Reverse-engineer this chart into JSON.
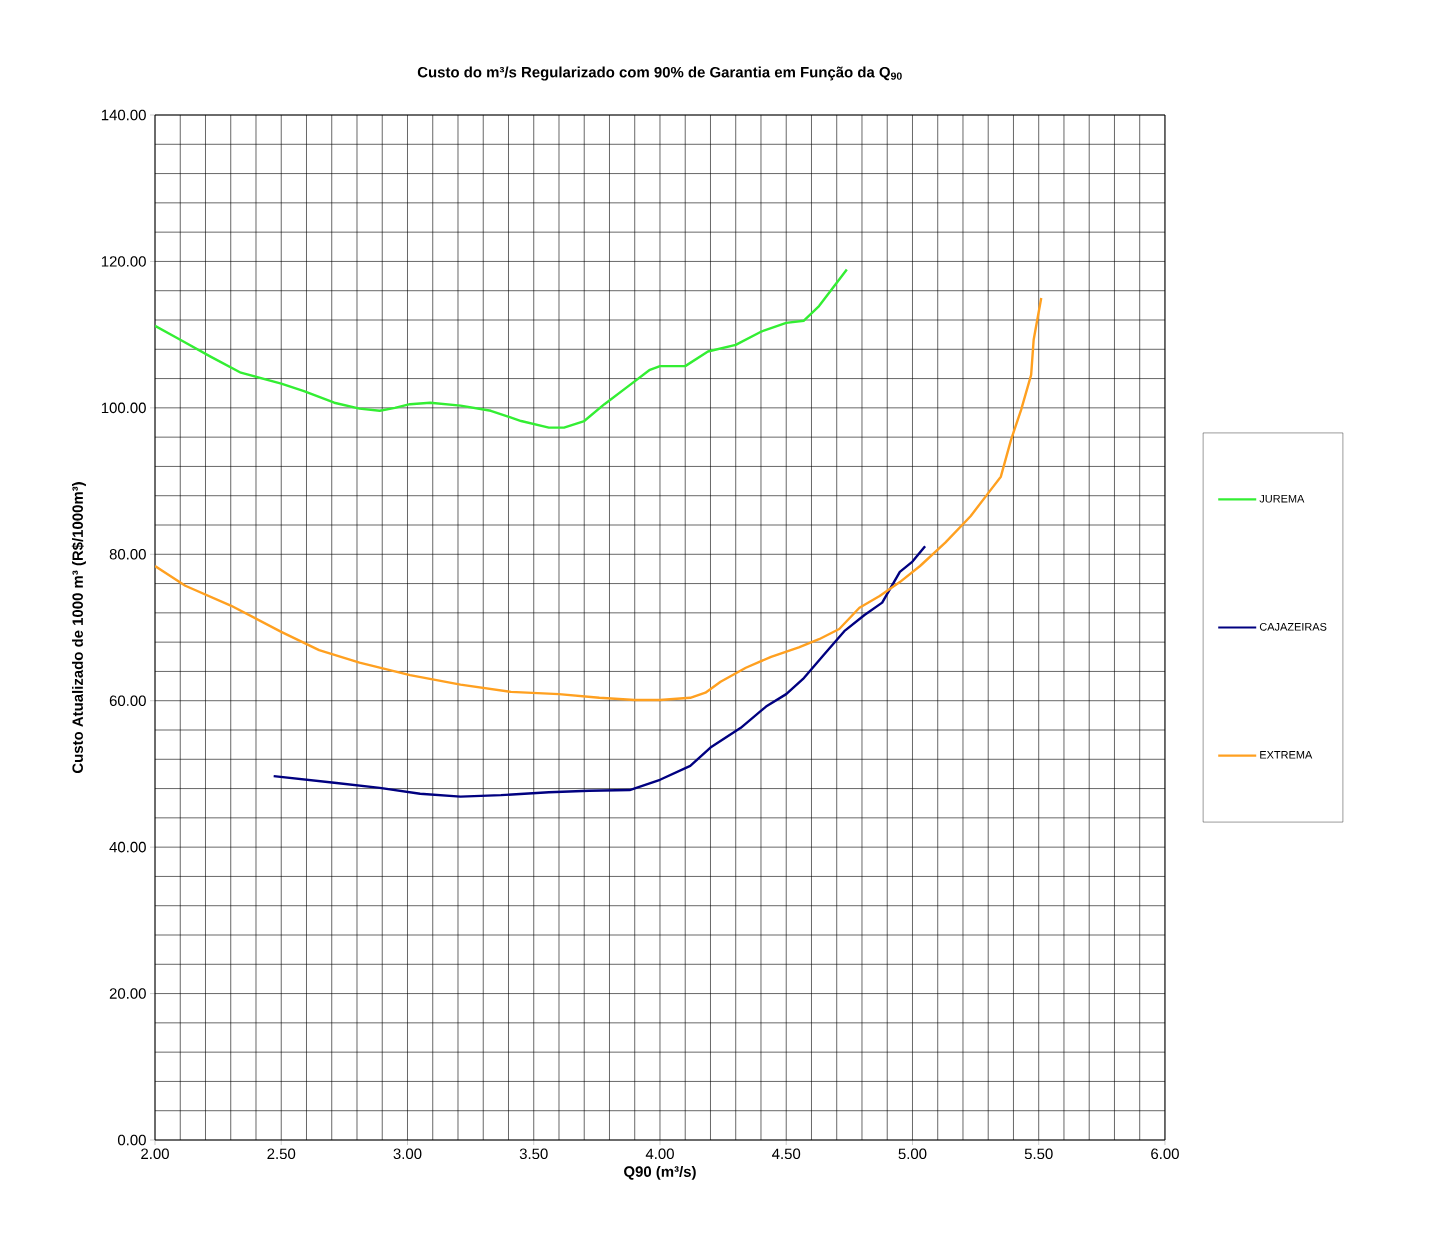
{
  "chart_data": {
    "type": "line",
    "title": "Custo do m³/s Regularizado com 90% de Garantia em Função da Q$_{90}$",
    "xlabel": "Q90 (m³/s)",
    "ylabel": "Custo Atualizado de 1000 m³ (R$/1000m³)",
    "xlim": [
      2,
      6
    ],
    "ylim": [
      0,
      140
    ],
    "xticks": [
      {
        "value": 2,
        "label": "2.00"
      },
      {
        "value": 2.5,
        "label": "2.50"
      },
      {
        "value": 3,
        "label": "3.00"
      },
      {
        "value": 3.5,
        "label": "3.50"
      },
      {
        "value": 4,
        "label": "4.00"
      },
      {
        "value": 4.5,
        "label": "4.50"
      },
      {
        "value": 5,
        "label": "5.00"
      },
      {
        "value": 5.5,
        "label": "5.50"
      },
      {
        "value": 6,
        "label": "6.00"
      }
    ],
    "yticks": [
      {
        "value": 0,
        "label": "0.00"
      },
      {
        "value": 20,
        "label": "20.00"
      },
      {
        "value": 40,
        "label": "40.00"
      },
      {
        "value": 60,
        "label": "60.00"
      },
      {
        "value": 80,
        "label": "80.00"
      },
      {
        "value": 100,
        "label": "100.00"
      },
      {
        "value": 120,
        "label": "120.00"
      },
      {
        "value": 140,
        "label": "140.00"
      }
    ],
    "grid": true,
    "legend": "right",
    "marker": "none",
    "series": [
      {
        "name": "JUREMA",
        "color": "#33ee33",
        "x": [
          2.0,
          2.1,
          2.22,
          2.34,
          2.5,
          2.59,
          2.71,
          2.81,
          2.89,
          2.95,
          3.01,
          3.09,
          3.21,
          3.33,
          3.45,
          3.56,
          3.62,
          3.7,
          3.78,
          3.88,
          3.96,
          4.0,
          4.1,
          4.19,
          4.3,
          4.4,
          4.5,
          4.57,
          4.63,
          4.74
        ],
        "values": [
          111.2,
          109.3,
          107.0,
          104.8,
          103.3,
          102.3,
          100.7,
          99.9,
          99.6,
          100.0,
          100.5,
          100.7,
          100.3,
          99.6,
          98.2,
          97.3,
          97.3,
          98.2,
          100.5,
          103.1,
          105.2,
          105.7,
          105.7,
          107.7,
          108.6,
          110.4,
          111.6,
          111.9,
          113.9,
          118.9
        ]
      },
      {
        "name": "CAJAZEIRAS",
        "color": "#000080",
        "x": [
          2.47,
          2.71,
          2.89,
          3.05,
          3.21,
          3.37,
          3.56,
          3.72,
          3.88,
          4.0,
          4.12,
          4.2,
          4.32,
          4.42,
          4.5,
          4.57,
          4.65,
          4.73,
          4.81,
          4.88,
          4.95,
          5.0,
          5.05
        ],
        "values": [
          49.7,
          48.8,
          48.1,
          47.3,
          46.9,
          47.1,
          47.5,
          47.7,
          47.8,
          49.2,
          51.1,
          53.6,
          56.3,
          59.2,
          60.9,
          63.1,
          66.3,
          69.5,
          71.7,
          73.4,
          77.6,
          79.0,
          81.1
        ]
      },
      {
        "name": "EXTREMA",
        "color": "#ffa020",
        "x": [
          2.0,
          2.12,
          2.3,
          2.5,
          2.65,
          2.81,
          3.01,
          3.21,
          3.41,
          3.6,
          3.76,
          3.9,
          4.0,
          4.12,
          4.18,
          4.24,
          4.34,
          4.44,
          4.55,
          4.63,
          4.71,
          4.79,
          4.87,
          4.95,
          5.03,
          5.13,
          5.23,
          5.31,
          5.35,
          5.39,
          5.43,
          5.47,
          5.48,
          5.51
        ],
        "values": [
          78.4,
          75.7,
          73.0,
          69.4,
          66.9,
          65.2,
          63.5,
          62.2,
          61.2,
          60.9,
          60.4,
          60.1,
          60.1,
          60.4,
          61.1,
          62.6,
          64.5,
          66.0,
          67.3,
          68.4,
          69.8,
          72.7,
          74.3,
          76.2,
          78.4,
          81.6,
          85.2,
          88.8,
          90.6,
          95.6,
          99.7,
          104.5,
          109.3,
          115.0
        ]
      }
    ]
  }
}
